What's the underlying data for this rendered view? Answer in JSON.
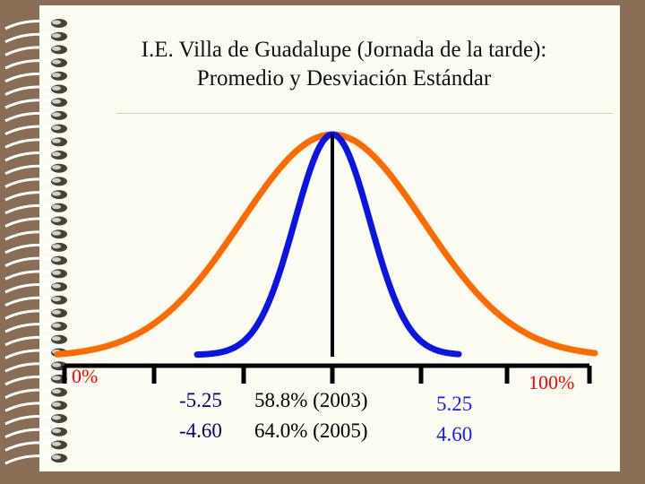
{
  "slide": {
    "colors": {
      "page": "#fdfcf3",
      "frame": "#8a6d55",
      "rings": "#ffffff"
    }
  },
  "chart_data": {
    "type": "line",
    "title_lines": [
      "I.E. Villa de Guadalupe (Jornada de la tarde):",
      "Promedio y Desviación Estándar"
    ],
    "series": [
      {
        "color": "#ff6a00",
        "spread": "wide"
      },
      {
        "color": "#0a14e6",
        "spread": "narrow"
      }
    ],
    "center_line_color": "#000000",
    "axis": {
      "left_label": "0%",
      "right_label": "100%",
      "label_color": "#ff0000",
      "tick_count": 7
    },
    "annotations": {
      "left": [
        "-5.25",
        "-4.60"
      ],
      "center": [
        "58.8% (2003)",
        "64.0% (2005)"
      ],
      "right": [
        "5.25",
        "4.60"
      ],
      "color_dark": "#000066",
      "color_blue": "#1a1aff"
    }
  }
}
